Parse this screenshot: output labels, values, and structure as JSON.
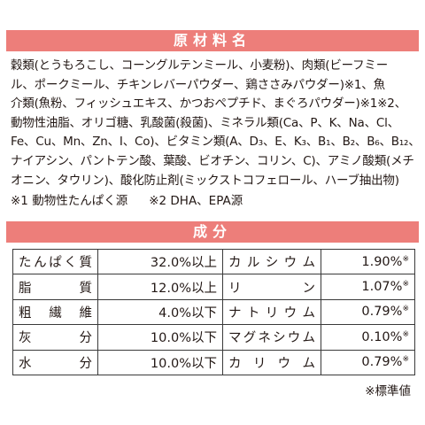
{
  "ingredients": {
    "title": "原材料名",
    "lines": [
      "穀類(とうもろこし、コーングルテンミール、小麦粉)、肉類(ビーフミー",
      "ル、ポークミール、チキンレバーパウダー、鶏ささみパウダー)※1、魚",
      "介類(魚粉、フィッシュエキス、かつおぺプチド、まぐろパウダー)※1※2、",
      "動物性油脂、オリゴ糖、乳酸菌(殺菌)、ミネラル類(Ca、P、K、Na、Cl、",
      "Fe、Cu、Mn、Zn、I、Co)、ビタミン類(A、D₃、E、K₃、B₁、B₂、B₆、B₁₂、",
      "ナイアシン、パントテン酸、葉酸、ビオチン、コリン、C)、アミノ酸類(メチ",
      "オニン、タウリン)、酸化防止剤(ミックストコフェロール、ハーブ抽出物)"
    ],
    "note1": "※1 動物性たんぱく源",
    "note2": "※2 DHA、EPA源"
  },
  "components": {
    "title": "成分",
    "rows": [
      {
        "label": "たんぱく質",
        "value": "32.0%以上",
        "label2": "カルシウム",
        "value2": "1.90%",
        "mark2": "※"
      },
      {
        "label": "脂質",
        "value": "12.0%以上",
        "label2": "リン",
        "value2": "1.07%",
        "mark2": "※"
      },
      {
        "label": "粗繊維",
        "value": "4.0%以下",
        "label2": "ナトリウム",
        "value2": "0.79%",
        "mark2": "※"
      },
      {
        "label": "灰分",
        "value": "10.0%以下",
        "label2": "マグネシウム",
        "value2": "0.10%",
        "mark2": "※"
      },
      {
        "label": "水分",
        "value": "10.0%以下",
        "label2": "カリウム",
        "value2": "0.79%",
        "mark2": "※"
      }
    ],
    "footnote": "※標準値"
  },
  "colors": {
    "banner": "#ed7e7a",
    "text": "#231815",
    "border": "#3a3a3a"
  }
}
